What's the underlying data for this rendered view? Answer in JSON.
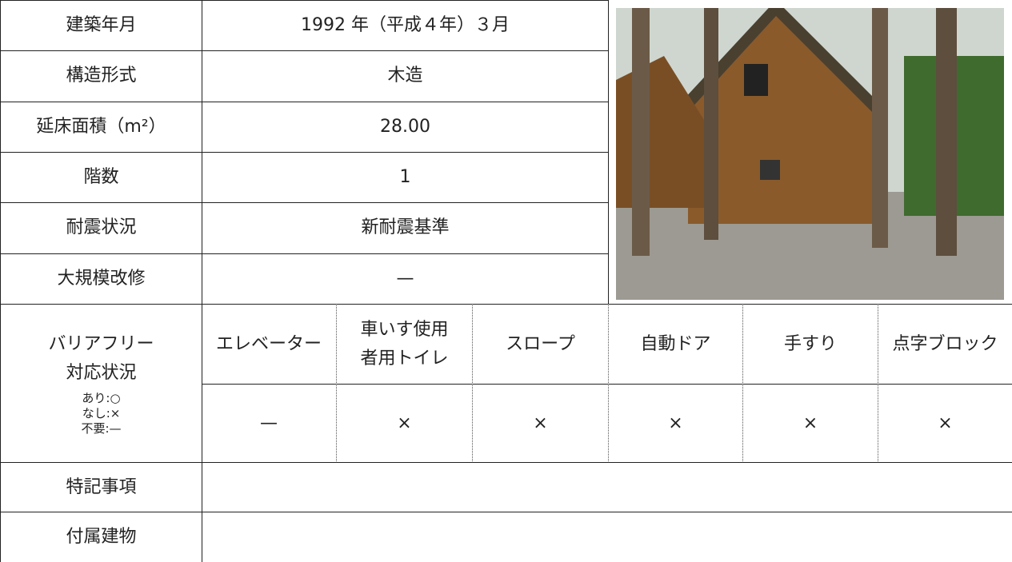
{
  "building": {
    "rows": [
      {
        "label": "建築年月",
        "value": "1992 年（平成４年）３月"
      },
      {
        "label": "構造形式",
        "value": "木造"
      },
      {
        "label": "延床面積（m²）",
        "value": "28.00"
      },
      {
        "label": "階数",
        "value": "1"
      },
      {
        "label": "耐震状況",
        "value": "新耐震基準"
      },
      {
        "label": "大規模改修",
        "value": "—"
      }
    ],
    "barrier_free": {
      "label_lines": [
        "バリアフリー",
        "対応状況"
      ],
      "legend": [
        "あり:○",
        "なし:×",
        "不要:—"
      ],
      "items": [
        {
          "name_lines": [
            "エレベーター"
          ],
          "status": "—"
        },
        {
          "name_lines": [
            "車いす使用",
            "者用トイレ"
          ],
          "status": "×"
        },
        {
          "name_lines": [
            "スロープ"
          ],
          "status": "×"
        },
        {
          "name_lines": [
            "自動ドア"
          ],
          "status": "×"
        },
        {
          "name_lines": [
            "手すり"
          ],
          "status": "×"
        },
        {
          "name_lines": [
            "点字ブロック"
          ],
          "status": "×"
        }
      ]
    },
    "extra_rows": [
      "特記事項",
      "付属建物"
    ]
  }
}
